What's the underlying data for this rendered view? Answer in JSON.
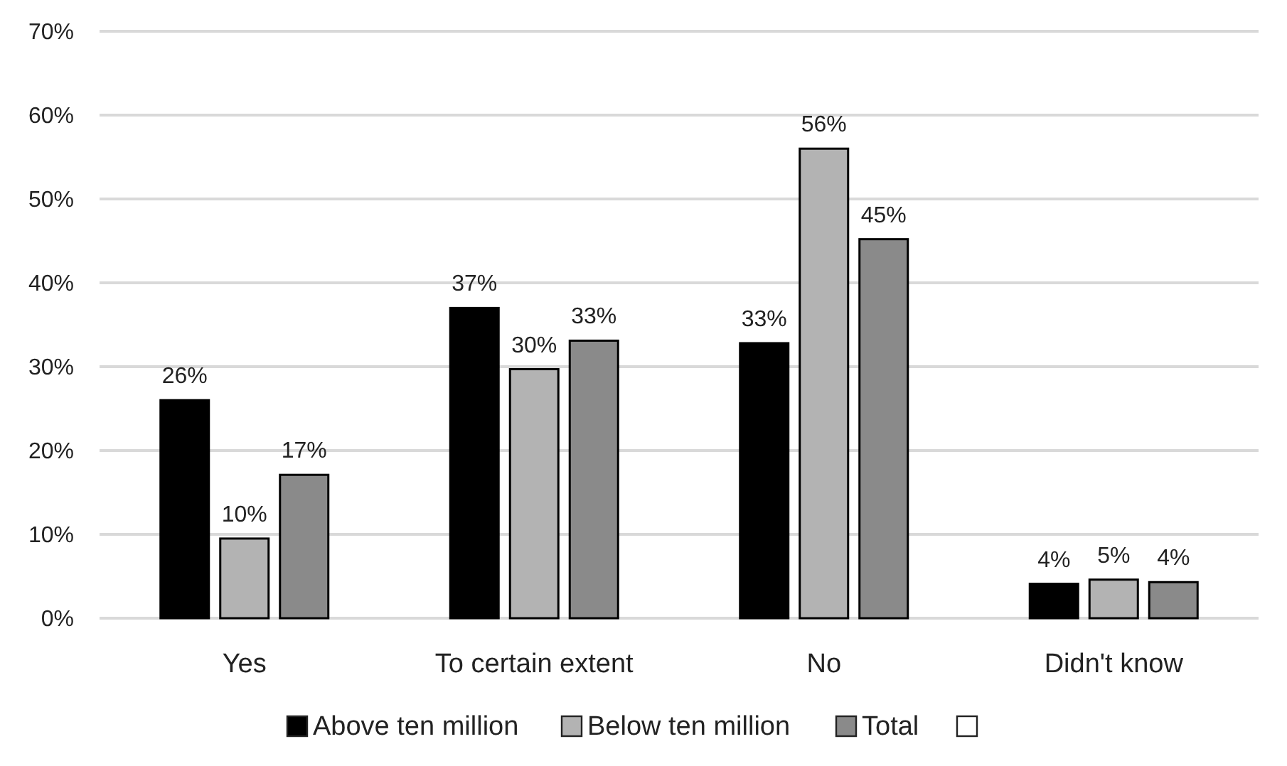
{
  "chart_data": {
    "type": "bar",
    "categories": [
      "Yes",
      "To certain extent",
      "No",
      "Didn't know"
    ],
    "series": [
      {
        "name": "Above ten million",
        "color": "#000000",
        "values": [
          26.0,
          37.0,
          32.8,
          4.1
        ],
        "value_labels": [
          "26%",
          "37%",
          "33%",
          "4%"
        ]
      },
      {
        "name": "Below ten million",
        "color": "#b3b3b3",
        "values": [
          9.5,
          29.7,
          56.0,
          4.6
        ],
        "value_labels": [
          "10%",
          "30%",
          "56%",
          "5%"
        ]
      },
      {
        "name": "Total",
        "color": "#8a8a8a",
        "values": [
          17.1,
          33.1,
          45.2,
          4.3
        ],
        "value_labels": [
          "17%",
          "33%",
          "45%",
          "4%"
        ]
      },
      {
        "color": "#ffffff",
        "values": [
          null,
          null,
          null,
          null
        ]
      }
    ],
    "ylim": [
      0,
      70
    ],
    "yticks": [
      {
        "value": 0,
        "label": "0%"
      },
      {
        "value": 10,
        "label": "10%"
      },
      {
        "value": 20,
        "label": "20%"
      },
      {
        "value": 30,
        "label": "30%"
      },
      {
        "value": 40,
        "label": "40%"
      },
      {
        "value": 50,
        "label": "50%"
      },
      {
        "value": 60,
        "label": "60%"
      },
      {
        "value": 70,
        "label": "70%"
      }
    ],
    "grid": "y",
    "legend": "bottom"
  }
}
